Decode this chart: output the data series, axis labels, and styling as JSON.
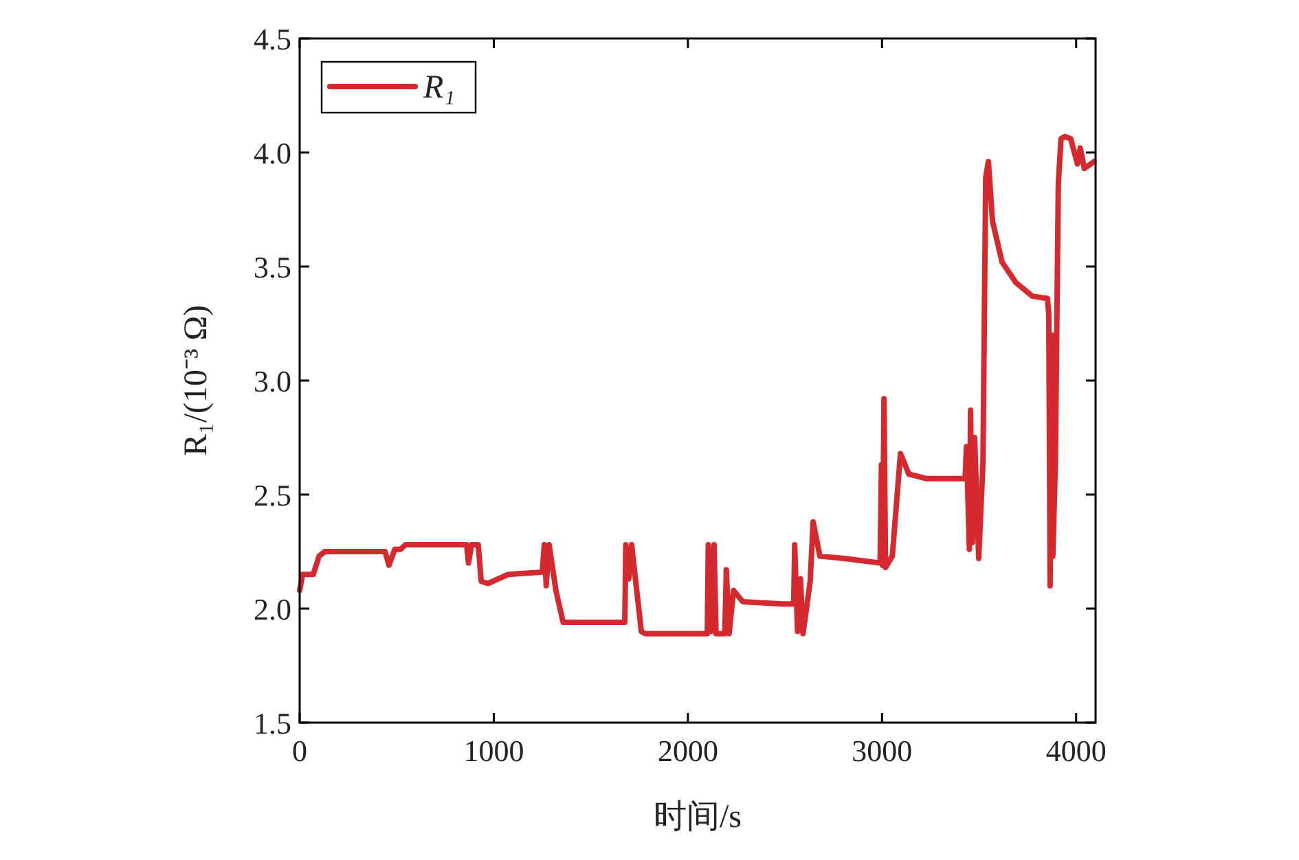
{
  "chart_data": {
    "type": "line",
    "xlabel": "时间/s",
    "ylabel": "R₁/(10⁻³ Ω)",
    "xlim": [
      0,
      4100
    ],
    "xticks": [
      0,
      1000,
      2000,
      3000,
      4000
    ],
    "ylim": [
      1.5,
      4.5
    ],
    "yticks": [
      1.5,
      {
        "value": 2,
        "label": "2.0"
      },
      2.5,
      {
        "value": 3,
        "label": "3.0"
      },
      3.5,
      {
        "value": 4,
        "label": "4.0"
      },
      4.5
    ],
    "grid": false,
    "legend": "top left",
    "marker": "none",
    "line_style": "solid",
    "series": [
      {
        "name": "R₁",
        "color": "#d42a2f",
        "x": [
          0,
          15,
          70,
          100,
          130,
          440,
          460,
          490,
          520,
          545,
          860,
          870,
          885,
          920,
          935,
          970,
          1075,
          1250,
          1260,
          1270,
          1285,
          1320,
          1357,
          1675,
          1680,
          1695,
          1710,
          1760,
          1780,
          1990,
          2100,
          2105,
          2120,
          2135,
          2145,
          2190,
          2198,
          2212,
          2235,
          2283,
          2488,
          2545,
          2550,
          2565,
          2580,
          2593,
          2630,
          2645,
          2680,
          2805,
          2990,
          2997,
          3003,
          3010,
          3018,
          3053,
          3095,
          3138,
          3230,
          3428,
          3435,
          3450,
          3456,
          3465,
          3477,
          3498,
          3520,
          3534,
          3548,
          3569,
          3618,
          3689,
          3774,
          3852,
          3859,
          3866,
          3873,
          3880,
          3893,
          3908,
          3922,
          3943,
          3972,
          4007,
          4021,
          4042,
          4092
        ],
        "values": [
          2.08,
          2.15,
          2.15,
          2.23,
          2.25,
          2.25,
          2.19,
          2.26,
          2.26,
          2.28,
          2.28,
          2.2,
          2.28,
          2.28,
          2.12,
          2.11,
          2.15,
          2.16,
          2.28,
          2.1,
          2.28,
          2.08,
          1.94,
          1.94,
          2.28,
          2.13,
          2.28,
          1.9,
          1.89,
          1.89,
          1.89,
          2.28,
          1.9,
          2.28,
          1.89,
          1.89,
          2.17,
          1.89,
          2.08,
          2.03,
          2.02,
          2.02,
          2.28,
          1.9,
          2.13,
          1.89,
          2.12,
          2.38,
          2.23,
          2.22,
          2.2,
          2.63,
          2.19,
          2.92,
          2.18,
          2.23,
          2.68,
          2.59,
          2.57,
          2.57,
          2.71,
          2.26,
          2.87,
          2.29,
          2.75,
          2.22,
          2.64,
          3.89,
          3.96,
          3.7,
          3.52,
          3.43,
          3.37,
          3.36,
          3.29,
          2.1,
          3.2,
          2.23,
          2.64,
          3.86,
          4.06,
          4.07,
          4.06,
          3.95,
          4.02,
          3.93,
          3.96
        ]
      }
    ]
  }
}
